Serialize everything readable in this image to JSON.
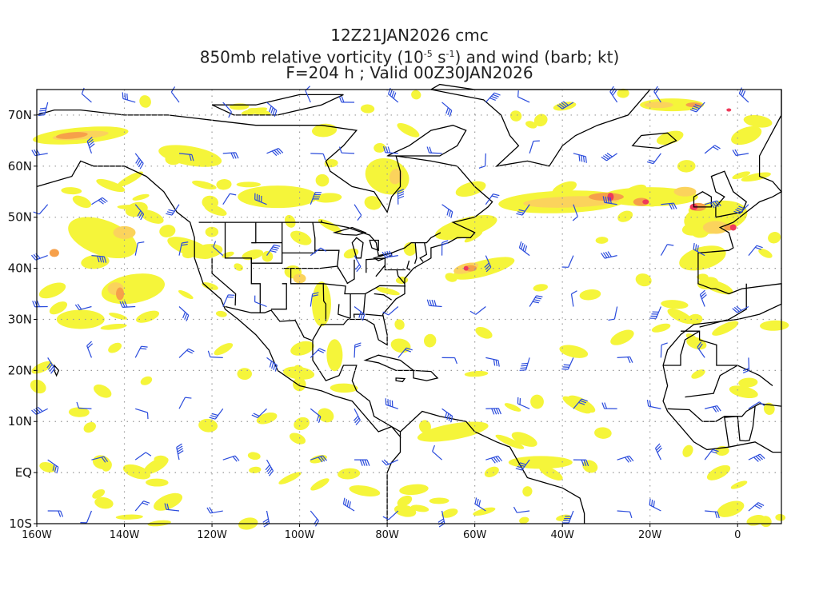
{
  "title": {
    "line1": "12Z21JAN2026 cmc",
    "line2_prefix": "850mb relative vorticity (10",
    "line2_exp1": "-5",
    "line2_mid": " s",
    "line2_exp2": "-1",
    "line2_suffix": ") and wind (barb; kt)",
    "line3": "F=204 h ; Valid 00Z30JAN2026"
  },
  "map": {
    "lon_range": [
      -160,
      10
    ],
    "lat_range": [
      -10,
      75
    ],
    "lat_labels": [
      {
        "lat": 70,
        "text": "70N"
      },
      {
        "lat": 60,
        "text": "60N"
      },
      {
        "lat": 50,
        "text": "50N"
      },
      {
        "lat": 40,
        "text": "40N"
      },
      {
        "lat": 30,
        "text": "30N"
      },
      {
        "lat": 20,
        "text": "20N"
      },
      {
        "lat": 10,
        "text": "10N"
      },
      {
        "lat": 0,
        "text": "EQ"
      },
      {
        "lat": -10,
        "text": "10S"
      }
    ],
    "lon_labels": [
      {
        "lon": -160,
        "text": "160W"
      },
      {
        "lon": -140,
        "text": "140W"
      },
      {
        "lon": -120,
        "text": "120W"
      },
      {
        "lon": -100,
        "text": "100W"
      },
      {
        "lon": -80,
        "text": "80W"
      },
      {
        "lon": -60,
        "text": "60W"
      },
      {
        "lon": -40,
        "text": "40W"
      },
      {
        "lon": -20,
        "text": "20W"
      },
      {
        "lon": 0,
        "text": "0"
      }
    ],
    "colors": {
      "shade_low": "#f5f53a",
      "shade_mid": "#fbd35c",
      "shade_high": "#f6a04a",
      "shade_max": "#ef3a5a",
      "barb": "#2a4bdc",
      "coast": "#000000",
      "grid": "#9a9a9a"
    },
    "grid": "dotted"
  }
}
